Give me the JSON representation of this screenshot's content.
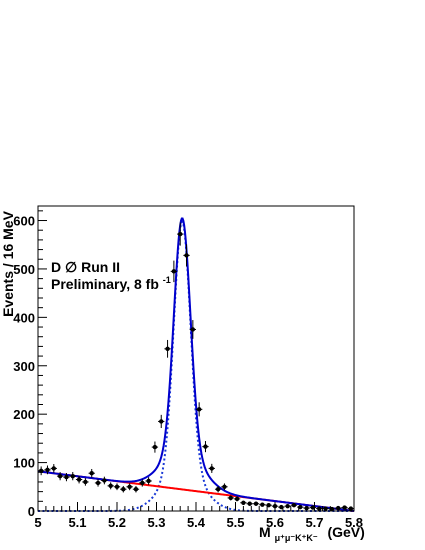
{
  "chart_data": {
    "type": "scatter",
    "ylabel": "Events / 16 MeV",
    "xlabel": {
      "main": "M",
      "subscript": "μ⁺μ⁻K⁺K⁻",
      "unit": "(GeV)"
    },
    "annotations": {
      "experiment_prefix": "D",
      "experiment_symbol": "∅",
      "experiment_suffix": " Run II",
      "status": "Preliminary, 8 fb",
      "status_superscript": "-1"
    },
    "xlim": [
      5.0,
      5.8
    ],
    "ylim": [
      0,
      630
    ],
    "x_ticks": [
      5.0,
      5.1,
      5.2,
      5.3,
      5.4,
      5.5,
      5.6,
      5.7,
      5.8
    ],
    "x_tick_labels": [
      "5",
      "5.1",
      "5.2",
      "5.3",
      "5.4",
      "5.5",
      "5.6",
      "5.7",
      "5.8"
    ],
    "y_ticks": [
      0,
      100,
      200,
      300,
      400,
      500,
      600
    ],
    "y_tick_labels": [
      "0",
      "100",
      "200",
      "300",
      "400",
      "500",
      "600"
    ],
    "grid": false,
    "series": [
      {
        "kind": "points",
        "color": "#000000",
        "x": [
          5.008,
          5.024,
          5.04,
          5.056,
          5.072,
          5.088,
          5.104,
          5.12,
          5.136,
          5.152,
          5.168,
          5.184,
          5.2,
          5.216,
          5.232,
          5.248,
          5.264,
          5.28,
          5.296,
          5.312,
          5.328,
          5.344,
          5.36,
          5.376,
          5.392,
          5.408,
          5.424,
          5.44,
          5.456,
          5.472,
          5.488,
          5.504,
          5.52,
          5.536,
          5.552,
          5.568,
          5.584,
          5.6,
          5.616,
          5.632,
          5.648,
          5.664,
          5.68,
          5.696,
          5.712,
          5.728,
          5.744,
          5.76,
          5.776,
          5.792
        ],
        "y": [
          83,
          85,
          88,
          72,
          70,
          72,
          65,
          60,
          78,
          58,
          63,
          52,
          50,
          45,
          50,
          45,
          58,
          62,
          132,
          185,
          335,
          495,
          572,
          528,
          375,
          210,
          133,
          88,
          45,
          50,
          27,
          25,
          17,
          15,
          15,
          13,
          12,
          10,
          8,
          10,
          12,
          8,
          6,
          7,
          5,
          5,
          4,
          6,
          7,
          5
        ],
        "yerr": [
          9,
          9,
          9,
          8.5,
          8.5,
          8.5,
          8,
          7.7,
          8.8,
          7.6,
          7.9,
          7.2,
          7,
          6.7,
          7,
          6.7,
          7.6,
          7.9,
          11.5,
          13.6,
          18.3,
          22.2,
          23.9,
          23,
          19.4,
          14.5,
          11.5,
          9.4,
          6.7,
          7,
          5.2,
          5,
          4.1,
          3.9,
          3.9,
          3.6,
          3.5,
          3.2,
          2.8,
          3.2,
          3.5,
          2.8,
          2.4,
          2.6,
          2.2,
          2.2,
          2,
          2.4,
          2.6,
          2.2
        ]
      },
      {
        "kind": "total-fit",
        "color": "#0000cc",
        "style": "solid"
      },
      {
        "kind": "signal",
        "color": "#1a3ad6",
        "style": "dotted",
        "peak_mass": 5.365,
        "peak_height": 598
      },
      {
        "kind": "background",
        "color": "#ff0000",
        "style": "solid",
        "x": [
          5.0,
          5.8
        ],
        "y": [
          82,
          0
        ]
      }
    ]
  }
}
